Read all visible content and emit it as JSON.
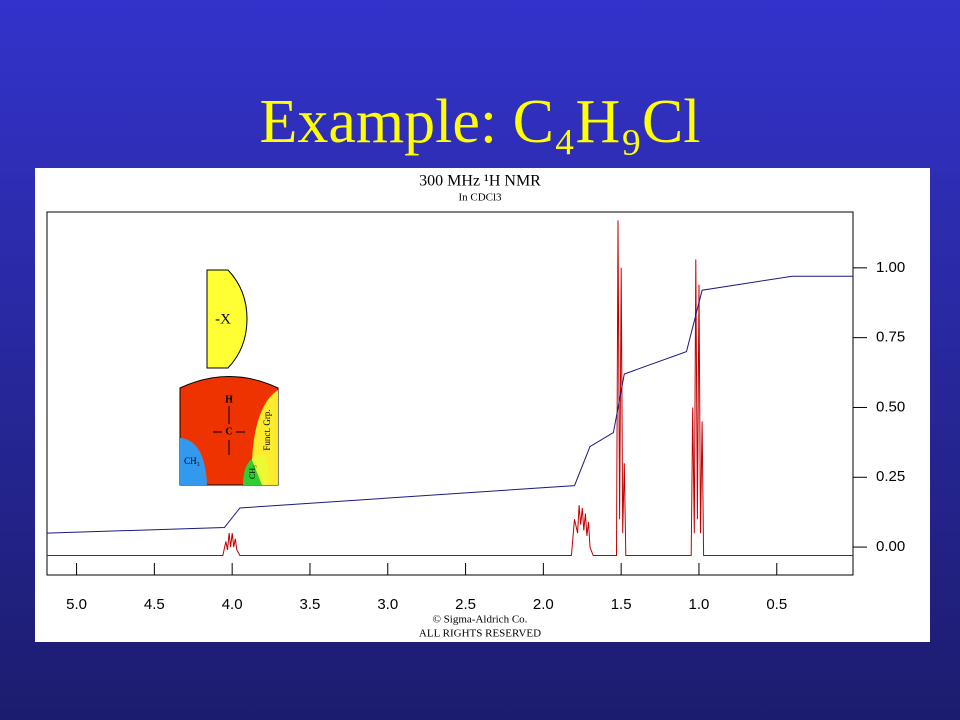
{
  "title": "Example: C₄H₉Cl",
  "chart_data": {
    "type": "line",
    "title": "300 MHz ¹H NMR",
    "subtitle": "In CDCl3",
    "annotations": [
      "© Sigma-Aldrich Co.",
      "ALL RIGHTS RESERVED"
    ],
    "inset": {
      "substituent": "-X",
      "h": "H",
      "c": "C",
      "ch3_left": "CH₃",
      "ch3_right": "CH₃",
      "funct": "Funct. Grp."
    },
    "xlim": [
      5.19,
      0.01
    ],
    "ylim": [
      -0.1,
      1.2
    ],
    "xticks": [
      {
        "value": 5,
        "label": "5.0"
      },
      4.5,
      {
        "value": 4,
        "label": "4.0"
      },
      3.5,
      {
        "value": 3,
        "label": "3.0"
      },
      2.5,
      {
        "value": 2,
        "label": "2.0"
      },
      1.5,
      {
        "value": 1,
        "label": "1.0"
      },
      0.5
    ],
    "yticks": [
      {
        "value": 1,
        "label": "1.00"
      },
      {
        "value": 0.75,
        "label": "0.75"
      },
      {
        "value": 0.5,
        "label": "0.50"
      },
      {
        "value": 0.25,
        "label": "0.25"
      },
      {
        "value": 0,
        "label": "0.00"
      }
    ],
    "series": [
      {
        "color": "#c00000",
        "x": [
          5.19,
          4.06,
          4.04,
          4.03,
          4.02,
          4.01,
          4.0,
          3.99,
          3.98,
          3.97,
          3.95,
          1.82,
          1.8,
          1.78,
          1.77,
          1.76,
          1.75,
          1.74,
          1.73,
          1.72,
          1.71,
          1.7,
          1.68,
          1.53,
          1.52,
          1.51,
          1.5,
          1.49,
          1.48,
          1.47,
          1.05,
          1.04,
          1.03,
          1.02,
          1.01,
          1.0,
          0.99,
          0.98,
          0.97,
          0.01
        ],
        "values": [
          -0.03,
          -0.03,
          0.02,
          -0.01,
          0.05,
          0.0,
          0.05,
          0.0,
          0.03,
          -0.01,
          -0.03,
          -0.03,
          0.1,
          0.05,
          0.15,
          0.08,
          0.14,
          0.06,
          0.12,
          0.04,
          0.09,
          0.0,
          -0.03,
          -0.03,
          1.17,
          0.1,
          1.0,
          0.05,
          0.3,
          -0.03,
          -0.03,
          0.5,
          0.05,
          1.03,
          0.1,
          0.94,
          0.05,
          0.45,
          -0.03,
          -0.03
        ]
      },
      {
        "color": "#1a1a80",
        "x": [
          5.19,
          4.05,
          3.95,
          1.8,
          1.7,
          1.55,
          1.48,
          1.08,
          0.98,
          0.4,
          0.01
        ],
        "values": [
          0.05,
          0.07,
          0.14,
          0.22,
          0.36,
          0.41,
          0.62,
          0.7,
          0.92,
          0.97,
          0.97
        ]
      }
    ]
  }
}
